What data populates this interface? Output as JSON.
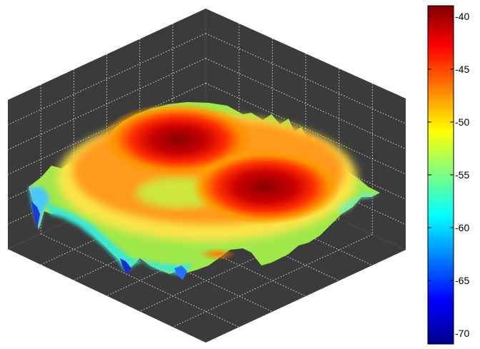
{
  "chart_data": {
    "type": "surface",
    "title": "",
    "xlabel": "",
    "ylabel": "",
    "zlabel": "",
    "grid": true,
    "background_color": "#3b3b3b",
    "colormap": "jet",
    "colorbar": {
      "placement": "right",
      "range": [
        -71,
        -39
      ],
      "ticks": [
        -40,
        -45,
        -50,
        -55,
        -60,
        -65,
        -70
      ]
    },
    "peaks": [
      {
        "location": "upper-left lobe",
        "z": -39
      },
      {
        "location": "center-right lobe",
        "z": -40
      }
    ],
    "minimum_z": -70
  }
}
